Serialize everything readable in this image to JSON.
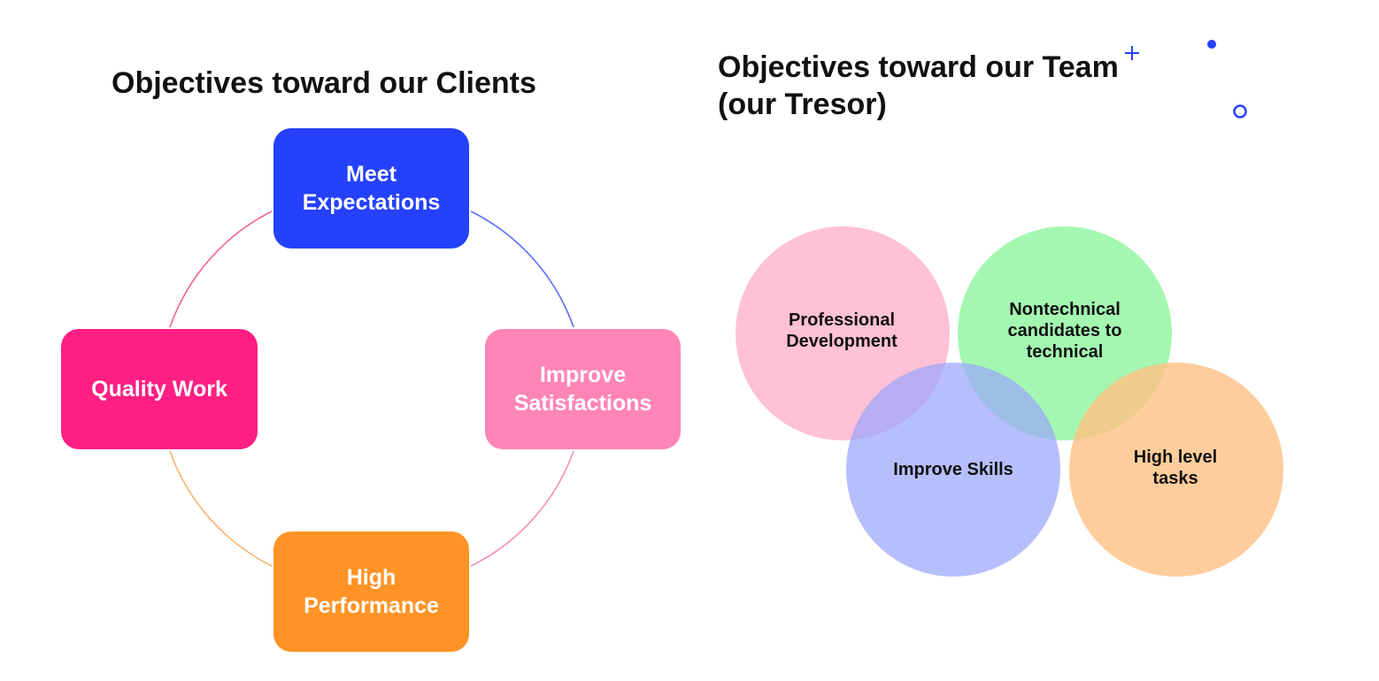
{
  "clients": {
    "title": "Objectives toward our Clients",
    "items": [
      {
        "id": "meet",
        "label": "Meet\nExpectations",
        "color": "#2541FB"
      },
      {
        "id": "improve",
        "label": "Improve\nSatisfactions",
        "color": "#FF85B6"
      },
      {
        "id": "high",
        "label": "High\nPerformance",
        "color": "#FF9325"
      },
      {
        "id": "quality",
        "label": "Quality Work",
        "color": "#FF1F82"
      }
    ],
    "connector_colors": [
      "#5B6CF6",
      "#F48FB8",
      "#F9B36E",
      "#F06296"
    ]
  },
  "team": {
    "title": "Objectives toward our Team\n(our Tresor)",
    "circles": [
      {
        "id": "prof",
        "label": "Professional\nDevelopment",
        "color": "#FFB6D0"
      },
      {
        "id": "nontech",
        "label": "Nontechnical\ncandidates to\ntechnical",
        "color": "#8BF59B"
      },
      {
        "id": "skills",
        "label": "Improve Skills",
        "color": "#9AA6FB"
      },
      {
        "id": "high",
        "label": "High level\ntasks",
        "color": "#FFC083"
      }
    ]
  },
  "decor": {
    "accent": "#2541FB",
    "icons": [
      "plus-icon",
      "dot-icon",
      "ring-icon"
    ]
  }
}
